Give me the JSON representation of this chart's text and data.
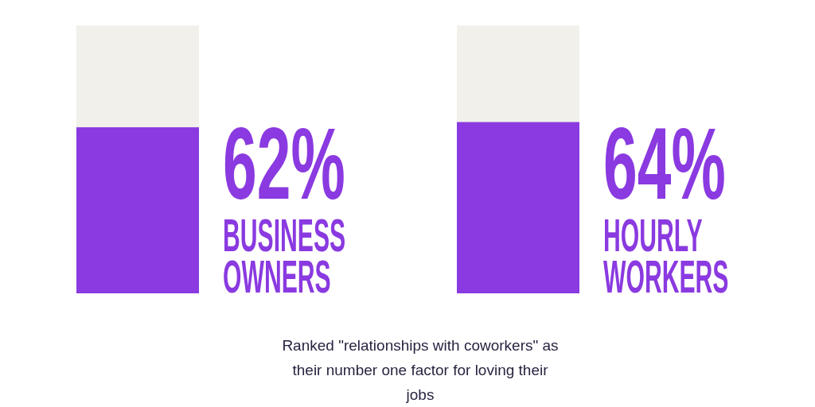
{
  "chart_data": {
    "type": "bar",
    "stacked": true,
    "categories": [
      "BUSINESS OWNERS",
      "HOURLY WORKERS"
    ],
    "series": [
      {
        "color": "#8a3ae0",
        "values": [
          62,
          64
        ],
        "value_labels": [
          "62%",
          "64%"
        ]
      },
      {
        "color": "#f1f0ea",
        "values": [
          38,
          36
        ]
      }
    ],
    "ylim": [
      0,
      100
    ],
    "tick_labels": false,
    "legend": false,
    "annotations": [
      "Ranked \"relationships with coworkers\" as their number one factor for loving their jobs"
    ]
  }
}
